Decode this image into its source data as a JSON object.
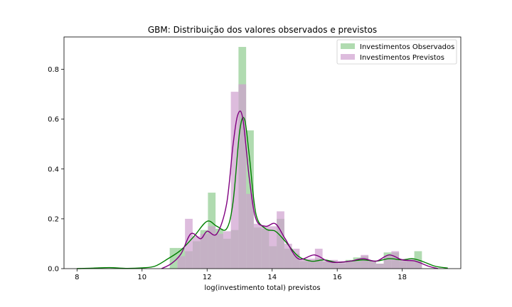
{
  "chart_data": {
    "type": "histogram",
    "title": "GBM: Distribuição dos valores observados e previstos",
    "xlabel": "log(investimento total) previstos",
    "ylabel": "",
    "xlim": [
      7.6,
      19.8
    ],
    "ylim": [
      0,
      0.93
    ],
    "xticks": [
      8,
      10,
      12,
      14,
      16,
      18
    ],
    "yticks": [
      0.0,
      0.2,
      0.4,
      0.6,
      0.8
    ],
    "bin_width": 0.235,
    "grid": false,
    "legend_position": "top-right",
    "colors": {
      "observed": "#008000",
      "predicted": "#800080",
      "observed_fill": "#8fcc8f",
      "predicted_fill": "#cfa0cf"
    },
    "series": [
      {
        "name": "Investimentos Observados",
        "bins": [
          [
            10.85,
            0.083
          ],
          [
            11.085,
            0.083
          ],
          [
            11.32,
            0.07
          ],
          [
            11.555,
            0.11
          ],
          [
            11.79,
            0.155
          ],
          [
            12.025,
            0.305
          ],
          [
            12.26,
            0.16
          ],
          [
            12.495,
            0.12
          ],
          [
            12.73,
            0.155
          ],
          [
            12.965,
            0.89
          ],
          [
            13.2,
            0.555
          ],
          [
            13.435,
            0.165
          ],
          [
            13.67,
            0.16
          ],
          [
            13.905,
            0.09
          ],
          [
            14.14,
            0.2
          ],
          [
            14.375,
            0.08
          ],
          [
            14.61,
            0.06
          ],
          [
            14.845,
            0.03
          ],
          [
            15.08,
            0.03
          ],
          [
            15.315,
            0.04
          ],
          [
            15.55,
            0.03
          ],
          [
            15.785,
            0.025
          ],
          [
            16.02,
            0.02
          ],
          [
            16.255,
            0.035
          ],
          [
            16.49,
            0.045
          ],
          [
            16.725,
            0.05
          ],
          [
            16.96,
            0.03
          ],
          [
            17.195,
            0.02
          ],
          [
            17.43,
            0.065
          ],
          [
            17.665,
            0.065
          ],
          [
            17.9,
            0.03
          ],
          [
            18.135,
            0.035
          ],
          [
            18.37,
            0.07
          ]
        ],
        "kde": [
          [
            8.0,
            0.0
          ],
          [
            8.5,
            0.002
          ],
          [
            9.0,
            0.004
          ],
          [
            9.5,
            0.001
          ],
          [
            10.0,
            0.003
          ],
          [
            10.4,
            0.01
          ],
          [
            10.8,
            0.04
          ],
          [
            11.2,
            0.075
          ],
          [
            11.6,
            0.13
          ],
          [
            12.0,
            0.19
          ],
          [
            12.3,
            0.17
          ],
          [
            12.6,
            0.16
          ],
          [
            12.8,
            0.27
          ],
          [
            13.0,
            0.55
          ],
          [
            13.15,
            0.6
          ],
          [
            13.3,
            0.45
          ],
          [
            13.5,
            0.22
          ],
          [
            13.8,
            0.16
          ],
          [
            14.1,
            0.15
          ],
          [
            14.4,
            0.11
          ],
          [
            14.8,
            0.05
          ],
          [
            15.2,
            0.03
          ],
          [
            15.6,
            0.035
          ],
          [
            16.0,
            0.025
          ],
          [
            16.4,
            0.03
          ],
          [
            16.8,
            0.035
          ],
          [
            17.2,
            0.03
          ],
          [
            17.6,
            0.04
          ],
          [
            18.0,
            0.035
          ],
          [
            18.3,
            0.04
          ],
          [
            18.6,
            0.03
          ],
          [
            19.0,
            0.01
          ],
          [
            19.4,
            0.002
          ]
        ]
      },
      {
        "name": "Investimentos Previstos",
        "bins": [
          [
            11.085,
            0.05
          ],
          [
            11.32,
            0.2
          ],
          [
            11.555,
            0.13
          ],
          [
            11.79,
            0.14
          ],
          [
            12.025,
            0.17
          ],
          [
            12.26,
            0.14
          ],
          [
            12.495,
            0.15
          ],
          [
            12.73,
            0.71
          ],
          [
            12.965,
            0.74
          ],
          [
            13.2,
            0.3
          ],
          [
            13.435,
            0.18
          ],
          [
            13.67,
            0.17
          ],
          [
            13.905,
            0.17
          ],
          [
            14.14,
            0.23
          ],
          [
            14.375,
            0.1
          ],
          [
            14.61,
            0.08
          ],
          [
            14.845,
            0.04
          ],
          [
            15.08,
            0.04
          ],
          [
            15.315,
            0.08
          ],
          [
            15.55,
            0.03
          ],
          [
            15.785,
            0.035
          ],
          [
            16.02,
            0.03
          ],
          [
            16.255,
            0.03
          ],
          [
            16.49,
            0.03
          ],
          [
            16.725,
            0.055
          ],
          [
            16.96,
            0.03
          ],
          [
            17.195,
            0.02
          ],
          [
            17.43,
            0.05
          ],
          [
            17.665,
            0.07
          ],
          [
            17.9,
            0.04
          ],
          [
            18.135,
            0.04
          ],
          [
            18.37,
            0.03
          ]
        ],
        "kde": [
          [
            10.6,
            0.0
          ],
          [
            10.9,
            0.02
          ],
          [
            11.2,
            0.06
          ],
          [
            11.5,
            0.14
          ],
          [
            11.8,
            0.12
          ],
          [
            12.0,
            0.15
          ],
          [
            12.3,
            0.14
          ],
          [
            12.6,
            0.26
          ],
          [
            12.8,
            0.5
          ],
          [
            12.95,
            0.62
          ],
          [
            13.1,
            0.6
          ],
          [
            13.3,
            0.36
          ],
          [
            13.5,
            0.2
          ],
          [
            13.8,
            0.17
          ],
          [
            14.1,
            0.18
          ],
          [
            14.4,
            0.12
          ],
          [
            14.8,
            0.04
          ],
          [
            15.3,
            0.055
          ],
          [
            15.7,
            0.03
          ],
          [
            16.0,
            0.025
          ],
          [
            16.4,
            0.03
          ],
          [
            16.8,
            0.04
          ],
          [
            17.2,
            0.03
          ],
          [
            17.6,
            0.055
          ],
          [
            18.0,
            0.035
          ],
          [
            18.4,
            0.03
          ],
          [
            18.8,
            0.01
          ],
          [
            19.1,
            0.0
          ]
        ]
      }
    ]
  }
}
